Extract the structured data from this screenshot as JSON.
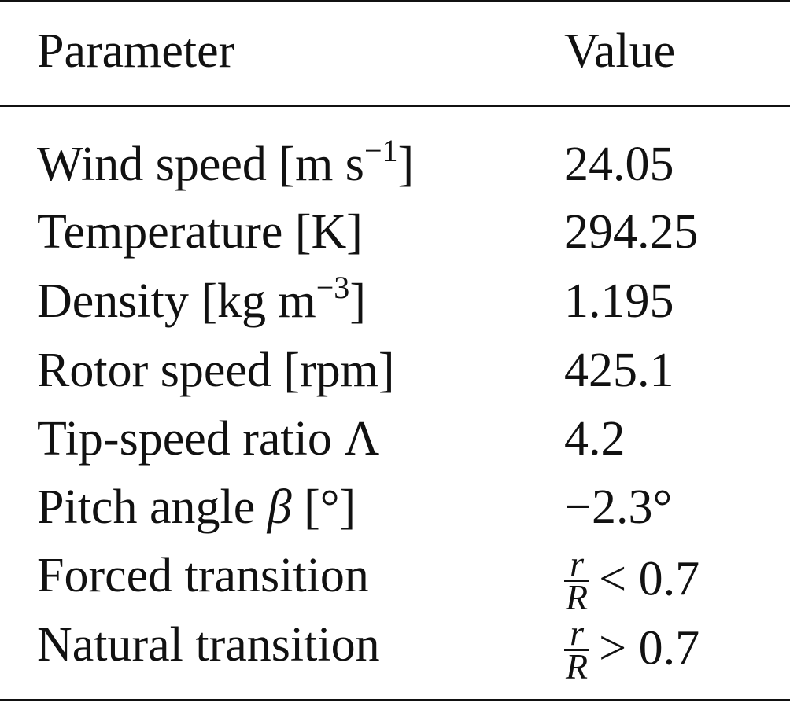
{
  "table": {
    "header": {
      "parameter": "Parameter",
      "value": "Value"
    },
    "rows": [
      {
        "label_main": "Wind speed [m s",
        "label_sup": "−1",
        "label_end": "]",
        "value": "24.05"
      },
      {
        "label_main": "Temperature [K]",
        "value": "294.25"
      },
      {
        "label_main": "Density [kg m",
        "label_sup": "−3",
        "label_end": "]",
        "value": "1.195"
      },
      {
        "label_main": "Rotor speed [rpm]",
        "value": "425.1"
      },
      {
        "label_main": "Tip-speed ratio Λ",
        "value": "4.2"
      },
      {
        "label_main": "Pitch angle ",
        "label_symbol": "β",
        "label_end": " [°]",
        "value": "−2.3°"
      },
      {
        "label_main": "Forced transition",
        "value_num": "r",
        "value_den": "R",
        "value_rest": "< 0.7"
      },
      {
        "label_main": "Natural transition",
        "value_num": "r",
        "value_den": "R",
        "value_rest": "> 0.7"
      }
    ]
  }
}
